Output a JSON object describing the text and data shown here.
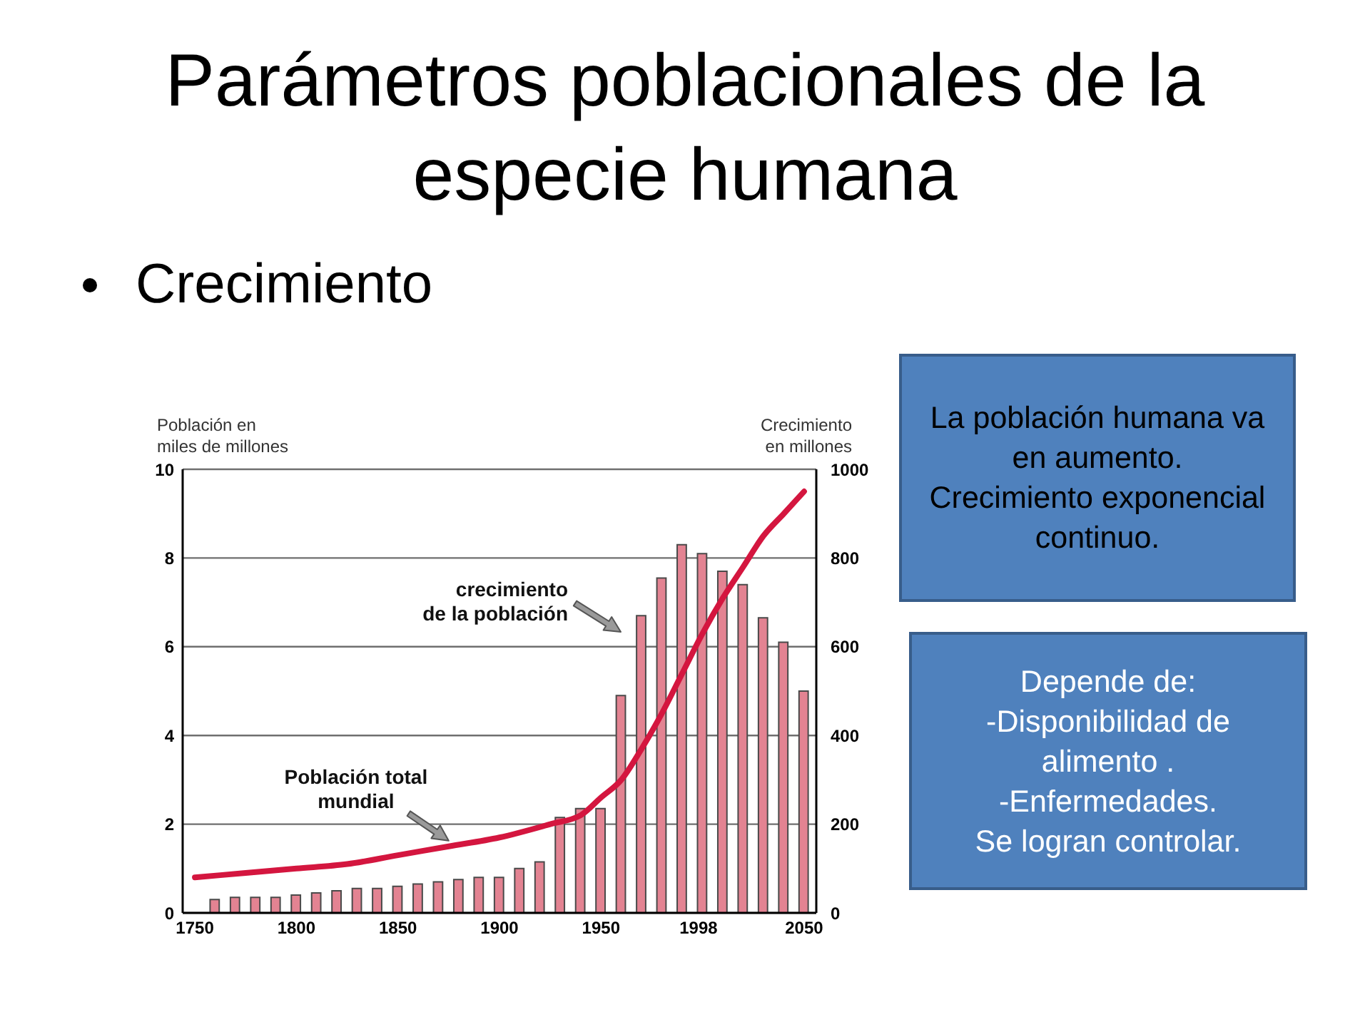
{
  "chart_data": [
    {
      "type": "bar",
      "title": "Parámetros poblacionales de la especie humana",
      "subtitle": "Crecimiento",
      "ylabel": "Población en\nmiles de millones",
      "y2label": "Crecimiento\nen millones",
      "x": [
        1760,
        1770,
        1780,
        1790,
        1800,
        1810,
        1820,
        1830,
        1840,
        1850,
        1860,
        1870,
        1880,
        1890,
        1900,
        1910,
        1920,
        1930,
        1940,
        1950,
        1960,
        1970,
        1980,
        1990,
        2000,
        2010,
        2020,
        2030,
        2040,
        2050
      ],
      "xlim": [
        1744,
        2056
      ],
      "xticks": [
        1750,
        1800,
        1850,
        1900,
        1950,
        1998,
        2050
      ],
      "ylim": [
        0,
        10
      ],
      "yticks": [
        0,
        2,
        4,
        6,
        8,
        10
      ],
      "y2lim": [
        0,
        1000
      ],
      "y2ticks": [
        0,
        200,
        400,
        600,
        800,
        1000
      ],
      "grid": "y",
      "series": [
        {
          "type": "bar",
          "axis": "y2",
          "color": "#e38392",
          "values": [
            30,
            35,
            35,
            35,
            40,
            45,
            50,
            55,
            55,
            60,
            65,
            70,
            75,
            80,
            80,
            100,
            115,
            215,
            235,
            235,
            490,
            670,
            755,
            830,
            810,
            770,
            740,
            665,
            610,
            500
          ]
        },
        {
          "type": "line",
          "color": "#d4163f",
          "x": [
            1750,
            1775,
            1800,
            1825,
            1850,
            1875,
            1900,
            1925,
            1940,
            1950,
            1960,
            1970,
            1980,
            1990,
            2000,
            2010,
            2020,
            2030,
            2040,
            2050
          ],
          "values": [
            0.8,
            0.9,
            1.0,
            1.1,
            1.3,
            1.5,
            1.7,
            2.0,
            2.2,
            2.6,
            3.0,
            3.7,
            4.5,
            5.4,
            6.3,
            7.1,
            7.8,
            8.5,
            9.0,
            9.5
          ]
        }
      ],
      "annotations": [
        "crecimiento\nde la población",
        {
          "text": "Población total\nmundial",
          "x": 1875,
          "y": 1.5
        }
      ]
    },
    {
      "type": "other",
      "color": "#4f81bd",
      "annotations": [
        "La población humana va en aumento.",
        "Crecimiento exponencial continuo."
      ]
    },
    {
      "type": "other",
      "color": "#4f81bd",
      "annotations": [
        "Depende de:",
        "-Disponibilidad de alimento .",
        "-Enfermedades.",
        "Se logran controlar."
      ]
    }
  ]
}
